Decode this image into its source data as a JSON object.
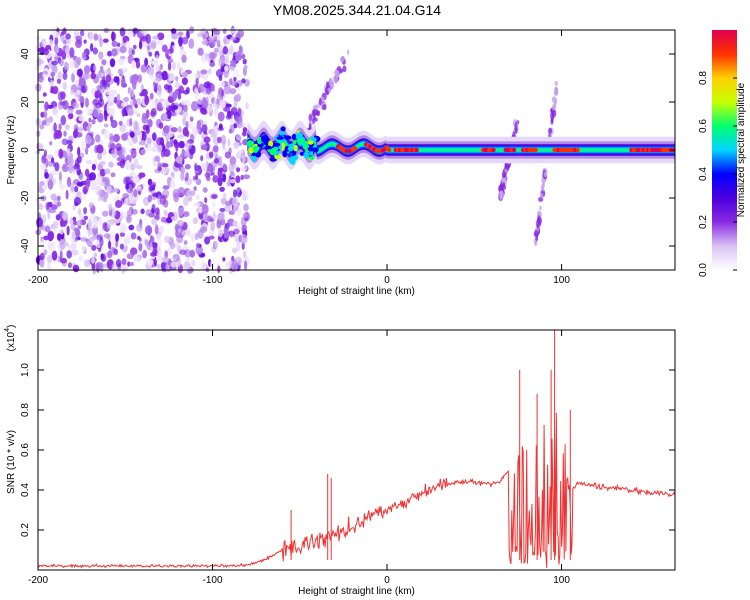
{
  "title": "YM08.2025.344.21.04.G14",
  "chart_data": [
    {
      "type": "heatmap",
      "name": "spectrogram",
      "xlabel": "Height of straight line (km)",
      "ylabel": "Frequency (Hz)",
      "xlim": [
        -200,
        165
      ],
      "ylim": [
        -50,
        50
      ],
      "xticks": [
        -200,
        -100,
        0,
        100
      ],
      "yticks": [
        -40,
        -20,
        0,
        20,
        40
      ],
      "colorbar": {
        "label": "Normalized spectral amplitude",
        "range": [
          0.0,
          1.0
        ],
        "ticks": [
          0.0,
          0.2,
          0.4,
          0.6,
          0.8
        ],
        "colors": [
          "#ffffff",
          "#d9c2f5",
          "#8a2be2",
          "#4b00e0",
          "#0000ff",
          "#00d5ff",
          "#00ff70",
          "#c8ff00",
          "#ffd000",
          "#ff3000",
          "#e00050"
        ]
      },
      "regions": [
        {
          "name": "noise",
          "x": [
            -200,
            -80
          ],
          "freq": [
            -50,
            50
          ],
          "amplitude": 0.1
        },
        {
          "name": "transition",
          "x": [
            -80,
            -40
          ],
          "freq_center": 2,
          "freq_width": 6,
          "amplitude": 0.45
        },
        {
          "name": "carrier",
          "x": [
            -40,
            165
          ],
          "freq_center": 0,
          "freq_width": 3,
          "amplitude": 0.85
        }
      ],
      "streaks": [
        {
          "x": [
            -45,
            -22
          ],
          "freq": [
            10,
            40
          ]
        },
        {
          "x": [
            65,
            75
          ],
          "freq": [
            -18,
            12
          ]
        },
        {
          "x": [
            85,
            97
          ],
          "freq": [
            -40,
            25
          ]
        }
      ]
    },
    {
      "type": "line",
      "name": "snr",
      "xlabel": "Height of straight line (km)",
      "ylabel": "SNR (10 * v/v)",
      "yscale_label": "(x10",
      "yscale_exp": "4",
      "xlim": [
        -200,
        165
      ],
      "ylim": [
        0,
        1.2
      ],
      "xticks": [
        -200,
        -100,
        0,
        100
      ],
      "yticks": [
        0.2,
        0.4,
        0.6,
        0.8,
        1.0
      ],
      "color": "#ee3333",
      "x": [
        -200,
        -150,
        -100,
        -80,
        -70,
        -60,
        -50,
        -40,
        -30,
        -20,
        -10,
        0,
        10,
        20,
        30,
        40,
        50,
        60,
        65,
        70,
        75,
        80,
        85,
        90,
        95,
        100,
        105,
        110,
        120,
        130,
        140,
        150,
        160,
        165
      ],
      "y": [
        0.02,
        0.02,
        0.02,
        0.025,
        0.05,
        0.1,
        0.12,
        0.15,
        0.18,
        0.22,
        0.27,
        0.3,
        0.34,
        0.38,
        0.42,
        0.44,
        0.44,
        0.43,
        0.44,
        0.5,
        0.75,
        0.6,
        0.7,
        0.65,
        0.8,
        0.9,
        0.4,
        0.43,
        0.42,
        0.41,
        0.4,
        0.39,
        0.38,
        0.37
      ],
      "peaks": [
        {
          "x": 96,
          "y": 1.2
        },
        {
          "x": 76,
          "y": 1.0
        },
        {
          "x": 94,
          "y": 1.0
        },
        {
          "x": 86,
          "y": 0.88
        },
        {
          "x": 105,
          "y": 0.8
        },
        {
          "x": -34,
          "y": 0.48
        },
        {
          "x": -32,
          "y": 0.46
        },
        {
          "x": -55,
          "y": 0.3
        }
      ]
    }
  ]
}
